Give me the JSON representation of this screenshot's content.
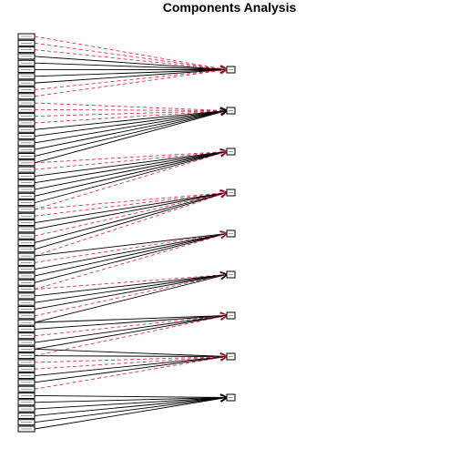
{
  "figure": {
    "title": "Components Analysis"
  },
  "diagram": {
    "component_count": 9,
    "variable_count": 60,
    "edge_styles": {
      "positive": "#000000",
      "negative": "#e0304a"
    },
    "loadings": [
      {
        "component": 1,
        "edges": [
          {
            "variable": 1,
            "sign": "neg"
          },
          {
            "variable": 2,
            "sign": "neg"
          },
          {
            "variable": 3,
            "sign": "neg"
          },
          {
            "variable": 4,
            "sign": "pos"
          },
          {
            "variable": 5,
            "sign": "pos"
          },
          {
            "variable": 6,
            "sign": "pos"
          },
          {
            "variable": 7,
            "sign": "pos"
          },
          {
            "variable": 8,
            "sign": "pos"
          },
          {
            "variable": 9,
            "sign": "neg"
          },
          {
            "variable": 10,
            "sign": "neg"
          }
        ]
      },
      {
        "component": 2,
        "edges": [
          {
            "variable": 11,
            "sign": "neg"
          },
          {
            "variable": 12,
            "sign": "neg"
          },
          {
            "variable": 13,
            "sign": "neg"
          },
          {
            "variable": 14,
            "sign": "neg"
          },
          {
            "variable": 15,
            "sign": "pos"
          },
          {
            "variable": 16,
            "sign": "pos"
          },
          {
            "variable": 17,
            "sign": "pos"
          },
          {
            "variable": 18,
            "sign": "pos"
          },
          {
            "variable": 19,
            "sign": "pos"
          },
          {
            "variable": 20,
            "sign": "pos"
          }
        ]
      },
      {
        "component": 3,
        "edges": [
          {
            "variable": 20,
            "sign": "neg"
          },
          {
            "variable": 21,
            "sign": "neg"
          },
          {
            "variable": 22,
            "sign": "pos"
          },
          {
            "variable": 23,
            "sign": "pos"
          },
          {
            "variable": 24,
            "sign": "pos"
          },
          {
            "variable": 25,
            "sign": "pos"
          },
          {
            "variable": 26,
            "sign": "pos"
          },
          {
            "variable": 27,
            "sign": "neg"
          }
        ]
      },
      {
        "component": 4,
        "edges": [
          {
            "variable": 27,
            "sign": "neg"
          },
          {
            "variable": 28,
            "sign": "neg"
          },
          {
            "variable": 29,
            "sign": "pos"
          },
          {
            "variable": 30,
            "sign": "pos"
          },
          {
            "variable": 31,
            "sign": "neg"
          },
          {
            "variable": 32,
            "sign": "pos"
          },
          {
            "variable": 33,
            "sign": "pos"
          },
          {
            "variable": 34,
            "sign": "neg"
          }
        ]
      },
      {
        "component": 5,
        "edges": [
          {
            "variable": 34,
            "sign": "pos"
          },
          {
            "variable": 35,
            "sign": "neg"
          },
          {
            "variable": 36,
            "sign": "pos"
          },
          {
            "variable": 37,
            "sign": "pos"
          },
          {
            "variable": 38,
            "sign": "pos"
          },
          {
            "variable": 39,
            "sign": "neg"
          }
        ]
      },
      {
        "component": 6,
        "edges": [
          {
            "variable": 39,
            "sign": "neg"
          },
          {
            "variable": 40,
            "sign": "pos"
          },
          {
            "variable": 41,
            "sign": "pos"
          },
          {
            "variable": 42,
            "sign": "pos"
          },
          {
            "variable": 43,
            "sign": "neg"
          },
          {
            "variable": 44,
            "sign": "pos"
          }
        ]
      },
      {
        "component": 7,
        "edges": [
          {
            "variable": 44,
            "sign": "pos"
          },
          {
            "variable": 45,
            "sign": "pos"
          },
          {
            "variable": 46,
            "sign": "neg"
          },
          {
            "variable": 47,
            "sign": "pos"
          },
          {
            "variable": 48,
            "sign": "pos"
          },
          {
            "variable": 49,
            "sign": "neg"
          }
        ]
      },
      {
        "component": 8,
        "edges": [
          {
            "variable": 48,
            "sign": "pos"
          },
          {
            "variable": 49,
            "sign": "pos"
          },
          {
            "variable": 50,
            "sign": "neg"
          },
          {
            "variable": 51,
            "sign": "neg"
          },
          {
            "variable": 52,
            "sign": "pos"
          },
          {
            "variable": 53,
            "sign": "pos"
          },
          {
            "variable": 54,
            "sign": "neg"
          }
        ]
      },
      {
        "component": 9,
        "edges": [
          {
            "variable": 55,
            "sign": "pos"
          },
          {
            "variable": 56,
            "sign": "pos"
          },
          {
            "variable": 57,
            "sign": "pos"
          },
          {
            "variable": 58,
            "sign": "pos"
          },
          {
            "variable": 59,
            "sign": "pos"
          },
          {
            "variable": 60,
            "sign": "pos"
          }
        ]
      }
    ]
  }
}
